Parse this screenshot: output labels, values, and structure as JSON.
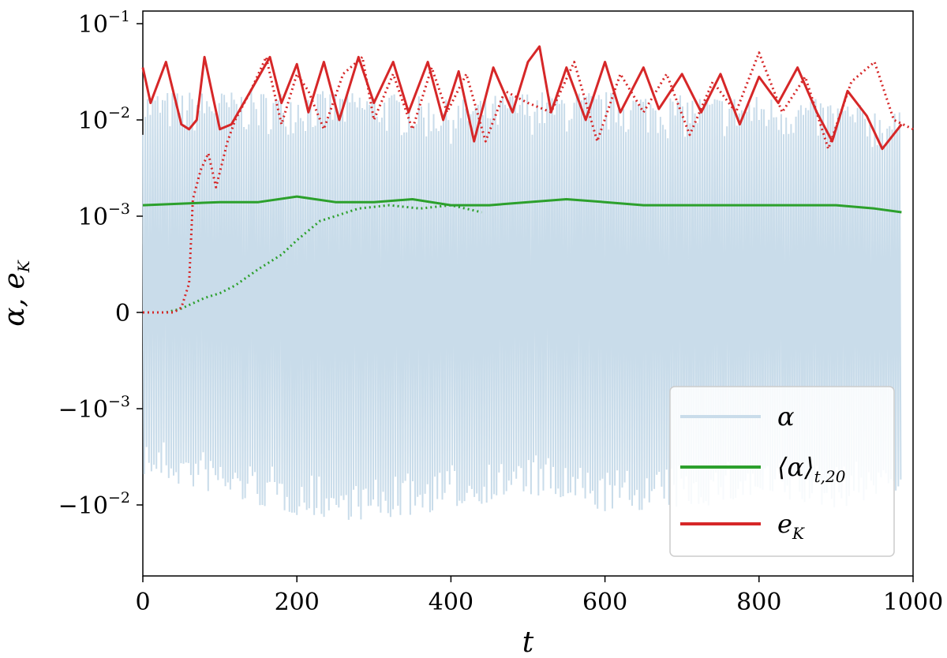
{
  "chart_data": {
    "type": "line",
    "scale": "symlog",
    "x": {
      "label": "t",
      "range": [
        0,
        1000
      ],
      "ticks": [
        "0",
        "200",
        "400",
        "600",
        "800",
        "1000"
      ]
    },
    "y": {
      "label": "α, e",
      "label_sub": "K",
      "ticks": [
        {
          "value": 0.1,
          "base": "10",
          "exp": "−1"
        },
        {
          "value": 0.01,
          "base": "10",
          "exp": "−2"
        },
        {
          "value": 0.001,
          "base": "10",
          "exp": "−3"
        },
        {
          "value": 0,
          "base": "0",
          "exp": ""
        },
        {
          "value": -0.001,
          "base": "−10",
          "exp": "−3"
        },
        {
          "value": -0.01,
          "base": "−10",
          "exp": "−2"
        }
      ]
    },
    "legend": {
      "placement": "lower-right",
      "entries": [
        {
          "label": "α",
          "sub": "",
          "color": "#c9dcea"
        },
        {
          "label": "⟨α⟩",
          "sub": "t,20",
          "color": "#2ca02c"
        },
        {
          "label": "e",
          "sub": "K",
          "color": "#d62728"
        }
      ]
    },
    "series": [
      {
        "name": "α",
        "style": "solid",
        "color": "#c9dcea",
        "band_low": [
          [
            0,
            -0.005
          ],
          [
            100,
            -0.008
          ],
          [
            200,
            -0.013
          ],
          [
            300,
            -0.015
          ],
          [
            400,
            -0.011
          ],
          [
            500,
            -0.008
          ],
          [
            600,
            -0.012
          ],
          [
            700,
            -0.011
          ],
          [
            800,
            -0.009
          ],
          [
            900,
            -0.011
          ],
          [
            985,
            -0.007
          ]
        ],
        "band_high": [
          [
            0,
            0.02
          ],
          [
            100,
            0.02
          ],
          [
            200,
            0.02
          ],
          [
            300,
            0.02
          ],
          [
            400,
            0.016
          ],
          [
            500,
            0.02
          ],
          [
            600,
            0.02
          ],
          [
            700,
            0.018
          ],
          [
            800,
            0.018
          ],
          [
            900,
            0.016
          ],
          [
            985,
            0.012
          ]
        ]
      },
      {
        "name": "⟨α⟩",
        "style": "solid",
        "color": "#2ca02c",
        "points": [
          [
            0,
            0.0013
          ],
          [
            50,
            0.00135
          ],
          [
            100,
            0.0014
          ],
          [
            150,
            0.0014
          ],
          [
            200,
            0.0016
          ],
          [
            250,
            0.0014
          ],
          [
            300,
            0.0014
          ],
          [
            350,
            0.0015
          ],
          [
            400,
            0.0013
          ],
          [
            450,
            0.0013
          ],
          [
            500,
            0.0014
          ],
          [
            550,
            0.0015
          ],
          [
            600,
            0.0014
          ],
          [
            650,
            0.0013
          ],
          [
            700,
            0.0013
          ],
          [
            750,
            0.0013
          ],
          [
            800,
            0.0013
          ],
          [
            850,
            0.0013
          ],
          [
            900,
            0.0013
          ],
          [
            950,
            0.0012
          ],
          [
            985,
            0.0011
          ]
        ]
      },
      {
        "name": "⟨α⟩ (dotted)",
        "style": "dotted",
        "color": "#2ca02c",
        "points": [
          [
            0,
            0
          ],
          [
            30,
            0
          ],
          [
            50,
            4e-05
          ],
          [
            80,
            0.00015
          ],
          [
            100,
            0.0002
          ],
          [
            120,
            0.00028
          ],
          [
            150,
            0.00045
          ],
          [
            180,
            0.0006
          ],
          [
            200,
            0.00075
          ],
          [
            230,
            0.00095
          ],
          [
            250,
            0.001
          ],
          [
            280,
            0.0012
          ],
          [
            320,
            0.0013
          ],
          [
            360,
            0.0012
          ],
          [
            400,
            0.0013
          ],
          [
            440,
            0.0011
          ]
        ]
      },
      {
        "name": "e",
        "style": "solid",
        "color": "#d62728",
        "points": [
          [
            0,
            0.035
          ],
          [
            10,
            0.015
          ],
          [
            30,
            0.04
          ],
          [
            50,
            0.009
          ],
          [
            60,
            0.008
          ],
          [
            70,
            0.01
          ],
          [
            80,
            0.045
          ],
          [
            100,
            0.008
          ],
          [
            115,
            0.009
          ],
          [
            140,
            0.02
          ],
          [
            165,
            0.045
          ],
          [
            180,
            0.015
          ],
          [
            200,
            0.038
          ],
          [
            215,
            0.012
          ],
          [
            235,
            0.04
          ],
          [
            255,
            0.01
          ],
          [
            280,
            0.045
          ],
          [
            300,
            0.015
          ],
          [
            325,
            0.04
          ],
          [
            345,
            0.012
          ],
          [
            370,
            0.04
          ],
          [
            390,
            0.01
          ],
          [
            410,
            0.032
          ],
          [
            430,
            0.006
          ],
          [
            455,
            0.035
          ],
          [
            480,
            0.012
          ],
          [
            500,
            0.04
          ],
          [
            515,
            0.058
          ],
          [
            530,
            0.012
          ],
          [
            550,
            0.035
          ],
          [
            575,
            0.01
          ],
          [
            600,
            0.04
          ],
          [
            620,
            0.012
          ],
          [
            650,
            0.035
          ],
          [
            670,
            0.013
          ],
          [
            700,
            0.03
          ],
          [
            725,
            0.012
          ],
          [
            750,
            0.03
          ],
          [
            775,
            0.009
          ],
          [
            800,
            0.028
          ],
          [
            825,
            0.015
          ],
          [
            850,
            0.035
          ],
          [
            875,
            0.012
          ],
          [
            895,
            0.006
          ],
          [
            915,
            0.02
          ],
          [
            940,
            0.011
          ],
          [
            960,
            0.005
          ],
          [
            985,
            0.009
          ]
        ]
      },
      {
        "name": "e (dotted)",
        "style": "dotted",
        "color": "#d62728",
        "points": [
          [
            0,
            0
          ],
          [
            40,
            0
          ],
          [
            50,
            5e-05
          ],
          [
            60,
            0.0003
          ],
          [
            65,
            0.0015
          ],
          [
            75,
            0.003
          ],
          [
            85,
            0.0045
          ],
          [
            95,
            0.002
          ],
          [
            110,
            0.006
          ],
          [
            120,
            0.01
          ],
          [
            140,
            0.02
          ],
          [
            160,
            0.045
          ],
          [
            180,
            0.009
          ],
          [
            200,
            0.03
          ],
          [
            215,
            0.02
          ],
          [
            235,
            0.008
          ],
          [
            260,
            0.03
          ],
          [
            285,
            0.045
          ],
          [
            300,
            0.01
          ],
          [
            325,
            0.03
          ],
          [
            350,
            0.008
          ],
          [
            375,
            0.035
          ],
          [
            395,
            0.012
          ],
          [
            420,
            0.03
          ],
          [
            445,
            0.006
          ],
          [
            470,
            0.02
          ],
          [
            500,
            0.015
          ],
          [
            530,
            0.012
          ],
          [
            560,
            0.04
          ],
          [
            590,
            0.006
          ],
          [
            620,
            0.03
          ],
          [
            650,
            0.012
          ],
          [
            680,
            0.03
          ],
          [
            710,
            0.007
          ],
          [
            740,
            0.025
          ],
          [
            770,
            0.012
          ],
          [
            800,
            0.05
          ],
          [
            830,
            0.012
          ],
          [
            860,
            0.028
          ],
          [
            890,
            0.005
          ],
          [
            920,
            0.025
          ],
          [
            950,
            0.04
          ],
          [
            975,
            0.01
          ],
          [
            1000,
            0.008
          ]
        ]
      }
    ]
  }
}
